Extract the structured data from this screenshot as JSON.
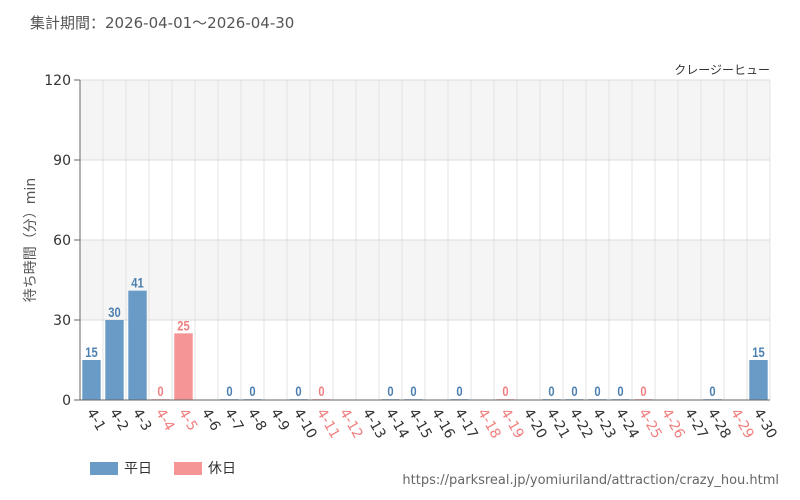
{
  "header": {
    "period": "集計期間：2026-04-01～2026-04-30",
    "ride_name": "クレージーヒュー"
  },
  "legend": {
    "weekday": "平日",
    "holiday": "休日"
  },
  "source": "https://parksreal.jp/yomiuriland/attraction/crazy_hou.html",
  "colors": {
    "weekday": "#6a9bc7",
    "holiday": "#f59595",
    "weekday_label": "#4a7fb0",
    "holiday_label": "#f07f7f"
  },
  "chart_data": {
    "type": "bar",
    "ylabel": "待ち時間（分）min",
    "ylim": [
      0,
      120
    ],
    "yticks": [
      0,
      30,
      60,
      90,
      120
    ],
    "grid": true,
    "categories": [
      "4-1",
      "4-2",
      "4-3",
      "4-4",
      "4-5",
      "4-6",
      "4-7",
      "4-8",
      "4-9",
      "4-10",
      "4-11",
      "4-12",
      "4-13",
      "4-14",
      "4-15",
      "4-16",
      "4-17",
      "4-18",
      "4-19",
      "4-20",
      "4-21",
      "4-22",
      "4-23",
      "4-24",
      "4-25",
      "4-26",
      "4-27",
      "4-28",
      "4-29",
      "4-30"
    ],
    "values": [
      15,
      30,
      41,
      0,
      25,
      null,
      0,
      0,
      null,
      0,
      0,
      null,
      null,
      0,
      0,
      null,
      0,
      null,
      0,
      null,
      0,
      0,
      0,
      0,
      0,
      null,
      null,
      0,
      null,
      15
    ],
    "day_type": [
      "weekday",
      "weekday",
      "weekday",
      "holiday",
      "holiday",
      "weekday",
      "weekday",
      "weekday",
      "weekday",
      "weekday",
      "holiday",
      "holiday",
      "weekday",
      "weekday",
      "weekday",
      "weekday",
      "weekday",
      "holiday",
      "holiday",
      "weekday",
      "weekday",
      "weekday",
      "weekday",
      "weekday",
      "holiday",
      "holiday",
      "weekday",
      "weekday",
      "holiday",
      "weekday"
    ]
  }
}
